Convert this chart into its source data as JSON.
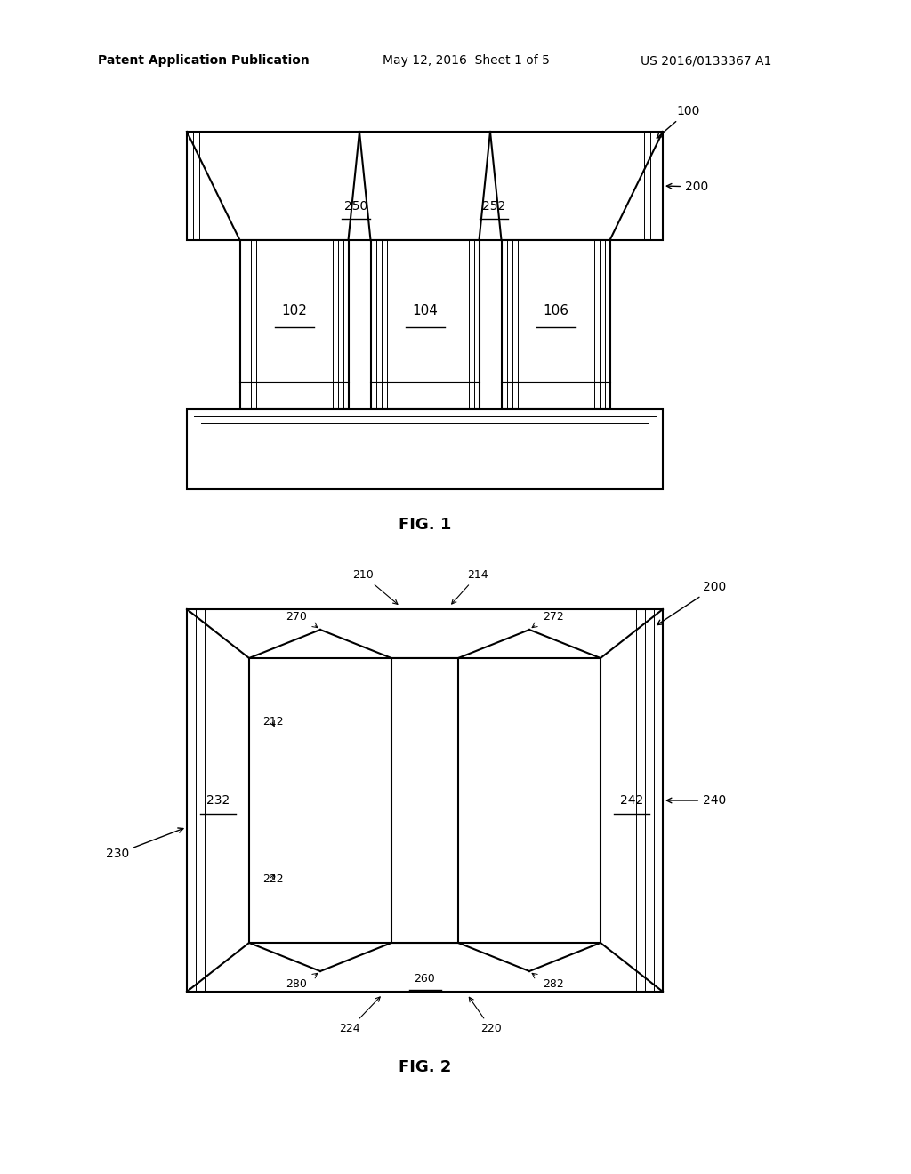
{
  "bg_color": "#ffffff",
  "line_color": "#000000",
  "header_left": "Patent Application Publication",
  "header_mid": "May 12, 2016  Sheet 1 of 5",
  "header_right": "US 2016/0133367 A1",
  "fig1_label": "FIG. 1",
  "fig2_label": "FIG. 2"
}
